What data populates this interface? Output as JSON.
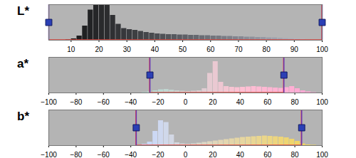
{
  "chart_data": [
    {
      "type": "histogram",
      "title": "L*",
      "tick_labels": "x",
      "xlim": [
        2,
        100
      ],
      "xticks": [
        10,
        20,
        30,
        40,
        50,
        60,
        70,
        80,
        90,
        100
      ],
      "ylim": [
        0,
        100
      ],
      "bins": [
        2,
        4,
        6,
        8,
        10,
        12,
        14,
        16,
        18,
        20,
        22,
        24,
        26,
        28,
        30,
        32,
        34,
        36,
        38,
        40,
        42,
        44,
        46,
        48,
        50,
        52,
        54,
        56,
        58,
        60,
        62,
        64,
        66,
        68,
        70,
        72,
        74,
        76,
        78,
        80,
        82,
        84,
        86,
        88,
        90,
        92,
        94,
        96,
        98,
        100
      ],
      "values": [
        0,
        0,
        0,
        1,
        4,
        12,
        40,
        85,
        100,
        100,
        98,
        70,
        45,
        33,
        30,
        28,
        25,
        22,
        20,
        18,
        17,
        16,
        16,
        15,
        15,
        14,
        14,
        13,
        13,
        12,
        12,
        11,
        11,
        10,
        10,
        9,
        9,
        8,
        8,
        7,
        7,
        6,
        5,
        5,
        4,
        3,
        2,
        1,
        1
      ],
      "selection": [
        2,
        100
      ]
    },
    {
      "type": "histogram",
      "title": "a*",
      "tick_labels": "x",
      "xlim": [
        -100,
        100
      ],
      "xticks": [
        -100,
        -80,
        -60,
        -40,
        -20,
        0,
        20,
        40,
        60,
        80,
        100
      ],
      "ylim": [
        0,
        100
      ],
      "bins": [
        -100,
        -96,
        -92,
        -88,
        -84,
        -80,
        -76,
        -72,
        -68,
        -64,
        -60,
        -56,
        -52,
        -48,
        -44,
        -40,
        -36,
        -32,
        -28,
        -24,
        -20,
        -16,
        -12,
        -8,
        -4,
        0,
        4,
        8,
        12,
        16,
        20,
        24,
        28,
        32,
        36,
        40,
        44,
        48,
        52,
        56,
        60,
        64,
        68,
        72,
        76,
        80,
        84,
        88,
        92,
        96,
        100
      ],
      "values": [
        0,
        0,
        0,
        0,
        0,
        0,
        0,
        0,
        0,
        0,
        0,
        0,
        0,
        0,
        0,
        0,
        0,
        1,
        3,
        6,
        9,
        10,
        8,
        6,
        5,
        4,
        5,
        6,
        12,
        55,
        88,
        30,
        18,
        16,
        15,
        16,
        17,
        18,
        17,
        16,
        15,
        14,
        13,
        15,
        18,
        12,
        6,
        3,
        1,
        0
      ],
      "selection": [
        -26,
        72
      ]
    },
    {
      "type": "histogram",
      "title": "b*",
      "tick_labels": "x",
      "xlim": [
        -100,
        100
      ],
      "xticks": [
        -100,
        -80,
        -60,
        -40,
        -20,
        0,
        20,
        40,
        60,
        80,
        100
      ],
      "ylim": [
        0,
        100
      ],
      "bins": [
        -100,
        -96,
        -92,
        -88,
        -84,
        -80,
        -76,
        -72,
        -68,
        -64,
        -60,
        -56,
        -52,
        -48,
        -44,
        -40,
        -36,
        -32,
        -28,
        -24,
        -20,
        -16,
        -12,
        -8,
        -4,
        0,
        4,
        8,
        12,
        16,
        20,
        24,
        28,
        32,
        36,
        40,
        44,
        48,
        52,
        56,
        60,
        64,
        68,
        72,
        76,
        80,
        84,
        88,
        92,
        96,
        100
      ],
      "values": [
        0,
        0,
        0,
        0,
        0,
        0,
        0,
        0,
        0,
        0,
        0,
        0,
        0,
        0,
        0,
        0,
        2,
        4,
        10,
        40,
        70,
        65,
        30,
        8,
        5,
        4,
        5,
        7,
        9,
        11,
        13,
        15,
        17,
        19,
        21,
        23,
        24,
        25,
        26,
        27,
        26,
        25,
        24,
        22,
        18,
        12,
        5,
        2,
        1,
        0
      ],
      "selection": [
        -36,
        85
      ]
    }
  ]
}
